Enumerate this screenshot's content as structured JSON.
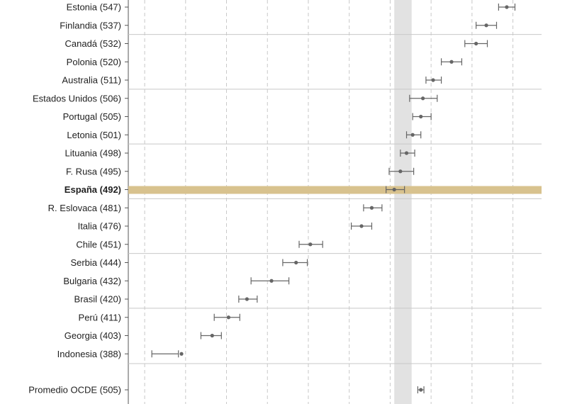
{
  "chart_data": {
    "type": "scatter",
    "title": "",
    "xlabel": "",
    "ylabel": "",
    "grid": true,
    "xlim": [
      362,
      564
    ],
    "gridlines_x": [
      370,
      390,
      410,
      430,
      450,
      470,
      490,
      510,
      530,
      550
    ],
    "highlight_band": [
      492,
      500.5
    ],
    "colors": {
      "marker": "#666666",
      "highlight_row": "#d8c28e",
      "band": "#e2e2e2",
      "separator": "#c8c8c8",
      "grid": "#c8c8c8",
      "axis": "#555555"
    },
    "rows": [
      {
        "label": "Estonia (547)",
        "mean": 547,
        "lo": 543,
        "hi": 551
      },
      {
        "label": "Finlandia (537)",
        "mean": 537,
        "lo": 532,
        "hi": 542
      },
      {
        "label": "Canadá (532)",
        "mean": 532,
        "lo": 526.5,
        "hi": 537.5
      },
      {
        "label": "Polonia (520)",
        "mean": 520,
        "lo": 515,
        "hi": 525
      },
      {
        "label": "Australia (511)",
        "mean": 511,
        "lo": 507.5,
        "hi": 515
      },
      {
        "label": "Estados Unidos (506)",
        "mean": 506,
        "lo": 499.5,
        "hi": 513
      },
      {
        "label": "Portugal (505)",
        "mean": 505,
        "lo": 501,
        "hi": 510
      },
      {
        "label": "Letonia (501)",
        "mean": 501,
        "lo": 498,
        "hi": 505
      },
      {
        "label": "Lituania (498)",
        "mean": 498,
        "lo": 495,
        "hi": 502
      },
      {
        "label": "F. Rusa (495)",
        "mean": 495,
        "lo": 489.5,
        "hi": 501.5
      },
      {
        "label": "España (492)",
        "mean": 492,
        "lo": 488,
        "hi": 497,
        "highlight": true
      },
      {
        "label": "R. Eslovaca (481)",
        "mean": 481,
        "lo": 477,
        "hi": 486
      },
      {
        "label": "Italia (476)",
        "mean": 476,
        "lo": 471,
        "hi": 481
      },
      {
        "label": "Chile (451)",
        "mean": 451,
        "lo": 445.5,
        "hi": 457
      },
      {
        "label": "Serbia (444)",
        "mean": 444,
        "lo": 437.5,
        "hi": 449.5
      },
      {
        "label": "Bulgaria (432)",
        "mean": 432,
        "lo": 422,
        "hi": 440.5
      },
      {
        "label": "Brasil (420)",
        "mean": 420,
        "lo": 416,
        "hi": 425
      },
      {
        "label": "Perú (411)",
        "mean": 411,
        "lo": 404,
        "hi": 416.5
      },
      {
        "label": "Georgia (403)",
        "mean": 403,
        "lo": 397.5,
        "hi": 407.5
      },
      {
        "label": "Indonesia (388)",
        "mean": 388,
        "lo": 373.5,
        "hi": 386.5
      },
      {
        "label": "Promedio OCDE (505)",
        "mean": 505,
        "lo": 503.5,
        "hi": 506.5
      }
    ],
    "separator_after_rows": [
      1,
      4,
      7,
      10,
      13,
      16,
      19
    ]
  }
}
